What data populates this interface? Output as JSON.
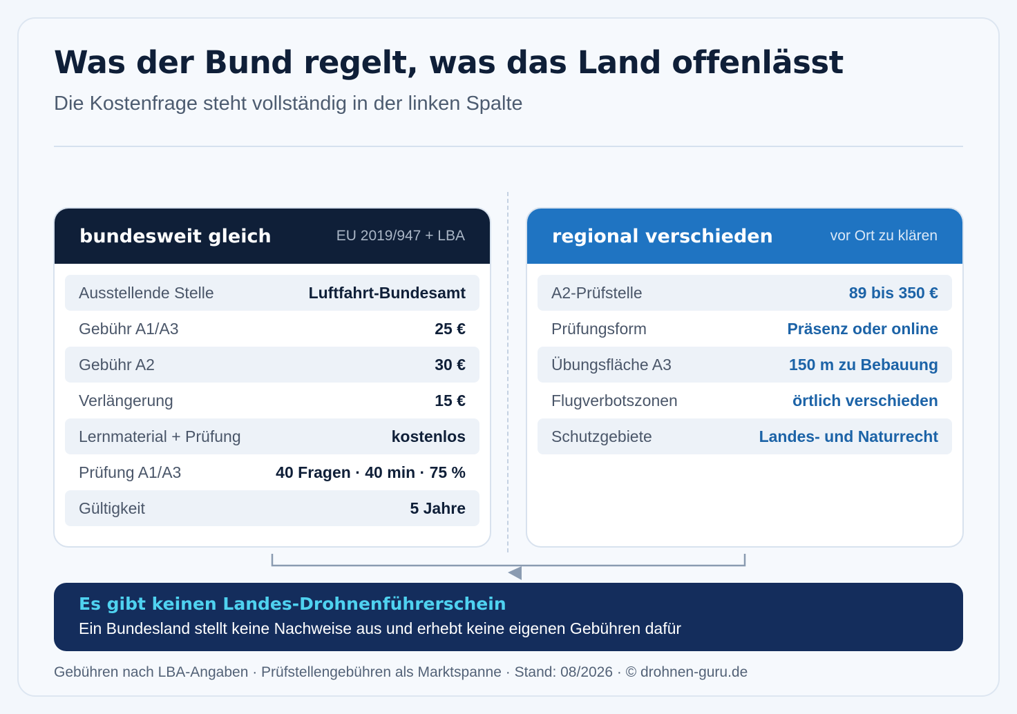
{
  "title": "Was der Bund regelt, was das Land offenlässt",
  "subtitle": "Die Kostenfrage steht vollständig in der linken Spalte",
  "left_panel": {
    "title": "bundesweit gleich",
    "tag": "EU 2019/947 + LBA",
    "rows": [
      {
        "label": "Ausstellende Stelle",
        "value": "Luftfahrt-Bundesamt"
      },
      {
        "label": "Gebühr A1/A3",
        "value": "25 €"
      },
      {
        "label": "Gebühr A2",
        "value": "30 €"
      },
      {
        "label": "Verlängerung",
        "value": "15 €"
      },
      {
        "label": "Lernmaterial + Prüfung",
        "value": "kostenlos"
      },
      {
        "label": "Prüfung A1/A3",
        "value": "40 Fragen · 40 min · 75 %"
      },
      {
        "label": "Gültigkeit",
        "value": "5 Jahre"
      }
    ]
  },
  "right_panel": {
    "title": "regional verschieden",
    "tag": "vor Ort zu klären",
    "rows": [
      {
        "label": "A2-Prüfstelle",
        "value": "89 bis 350 €"
      },
      {
        "label": "Prüfungsform",
        "value": "Präsenz oder online"
      },
      {
        "label": "Übungsfläche A3",
        "value": "150 m zu Bebauung"
      },
      {
        "label": "Flugverbotszonen",
        "value": "örtlich verschieden"
      },
      {
        "label": "Schutzgebiete",
        "value": "Landes- und Naturrecht"
      }
    ]
  },
  "banner": {
    "heading": "Es gibt keinen Landes-Drohnenführerschein",
    "text": "Ein Bundesland stellt keine Nachweise aus und erhebt keine eigenen Gebühren dafür"
  },
  "footer": "Gebühren nach LBA-Angaben · Prüfstellengebühren als Marktspanne · Stand: 08/2026 · © drohnen-guru.de",
  "colors": {
    "navy": "#0f1f38",
    "blue": "#1f74c2",
    "value_blue": "#1c63a7",
    "banner_bg": "#142d5c",
    "banner_accent": "#4fd2f0"
  }
}
